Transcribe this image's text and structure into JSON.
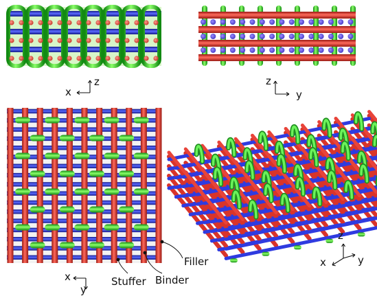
{
  "colors": {
    "stuffer": "#e0332b",
    "binder": "#2fd22f",
    "filler": "#2f3be0",
    "dark": "#111111"
  },
  "axes": {
    "front_view": {
      "horizontal": "x",
      "vertical": "z"
    },
    "side_view": {
      "vertical": "z",
      "horizontal": "y"
    },
    "top_view": {
      "horizontal": "x",
      "vertical": "y"
    },
    "iso_view": {
      "vertical": "z",
      "left": "x",
      "right": "y"
    }
  },
  "callouts": {
    "filler": "Filler",
    "binder": "Binder",
    "stuffer": "Stuffer"
  }
}
